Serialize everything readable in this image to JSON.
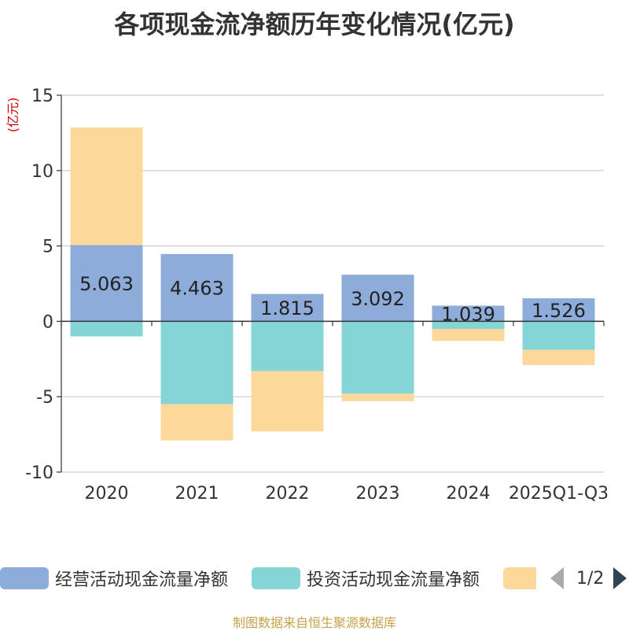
{
  "chart_data": {
    "type": "bar",
    "stacked": true,
    "title": "各项现金流净额历年变化情况(亿元)",
    "ylabel": "(亿元)",
    "xlabel": "",
    "categories": [
      "2020",
      "2021",
      "2022",
      "2023",
      "2024",
      "2025Q1-Q3"
    ],
    "ylim": [
      -10,
      15
    ],
    "yticks": [
      -10,
      -5,
      0,
      5,
      10,
      15
    ],
    "grid": true,
    "series": [
      {
        "name": "经营活动现金流量净额",
        "color": "#8eacd9",
        "values": [
          5.063,
          4.463,
          1.815,
          3.092,
          1.039,
          1.526
        ],
        "labels": [
          "5.063",
          "4.463",
          "1.815",
          "3.092",
          "1.039",
          "1.526"
        ]
      },
      {
        "name": "投资活动现金流量净额",
        "color": "#85d4d6",
        "values": [
          -1.0,
          -5.5,
          -3.3,
          -4.8,
          -0.5,
          -1.9
        ]
      },
      {
        "name": "",
        "color": "#fdd89b",
        "values": [
          7.8,
          -2.4,
          -4.0,
          -0.5,
          -0.8,
          -1.0
        ]
      }
    ],
    "legend_position": "bottom"
  },
  "legend": {
    "items": [
      {
        "label": "经营活动现金流量净额",
        "color": "#8eacd9"
      },
      {
        "label": "投资活动现金流量净额",
        "color": "#85d4d6"
      },
      {
        "label": "",
        "color": "#fdd89b"
      }
    ],
    "page": "1/2"
  },
  "source": "制图数据来自恒生聚源数据库"
}
